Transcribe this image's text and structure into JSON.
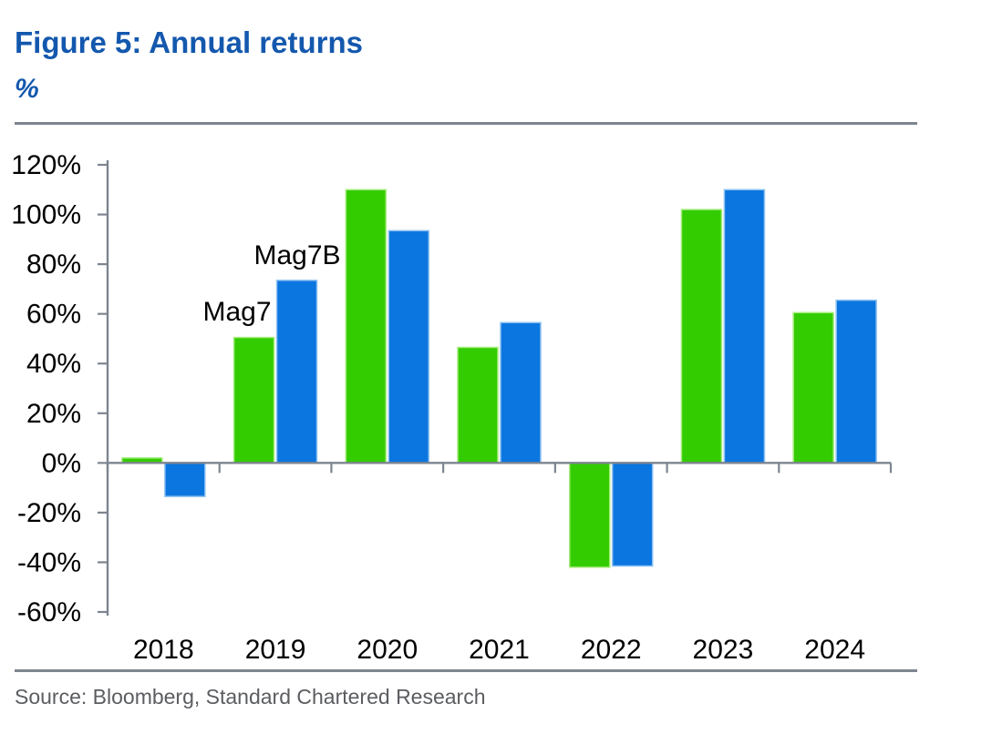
{
  "header": {
    "title": "Figure 5: Annual returns",
    "subtitle": "%"
  },
  "source": {
    "text": "Source: Bloomberg, Standard Chartered Research"
  },
  "colors": {
    "title_blue": "#1458AE",
    "rule_gray": "#7D858F",
    "axis_gray": "#7D8590",
    "label_black": "#000000",
    "source_gray": "#5B5D60",
    "mag7_green": "#33CC00",
    "mag7_green_edge": "#A5EC7E",
    "mag7b_blue": "#0B76E0",
    "mag7b_blue_edge": "#8FC2F1"
  },
  "chart_data": {
    "type": "bar",
    "title": "Figure 5: Annual returns",
    "ylabel": "%",
    "xlabel": "",
    "categories": [
      "2018",
      "2019",
      "2020",
      "2021",
      "2022",
      "2023",
      "2024"
    ],
    "series": [
      {
        "name": "Mag7",
        "color": "#33CC00",
        "edge": "#A5EC7E",
        "values": [
          2,
          50.5,
          110,
          46.5,
          -42,
          102,
          60.5
        ]
      },
      {
        "name": "Mag7B",
        "color": "#0B76E0",
        "edge": "#8FC2F1",
        "values": [
          -13.5,
          73.5,
          93.5,
          56.5,
          -41.5,
          110,
          65.5
        ]
      }
    ],
    "ylim": [
      -60,
      120
    ],
    "ytick_step": 20,
    "ytick_suffix": "%",
    "grid": false,
    "legend": "inline-annotations",
    "annotations": [
      {
        "text": "Mag7",
        "x": 260,
        "y": 352
      },
      {
        "text": "Mag7B",
        "x": 326,
        "y": 290
      }
    ]
  }
}
